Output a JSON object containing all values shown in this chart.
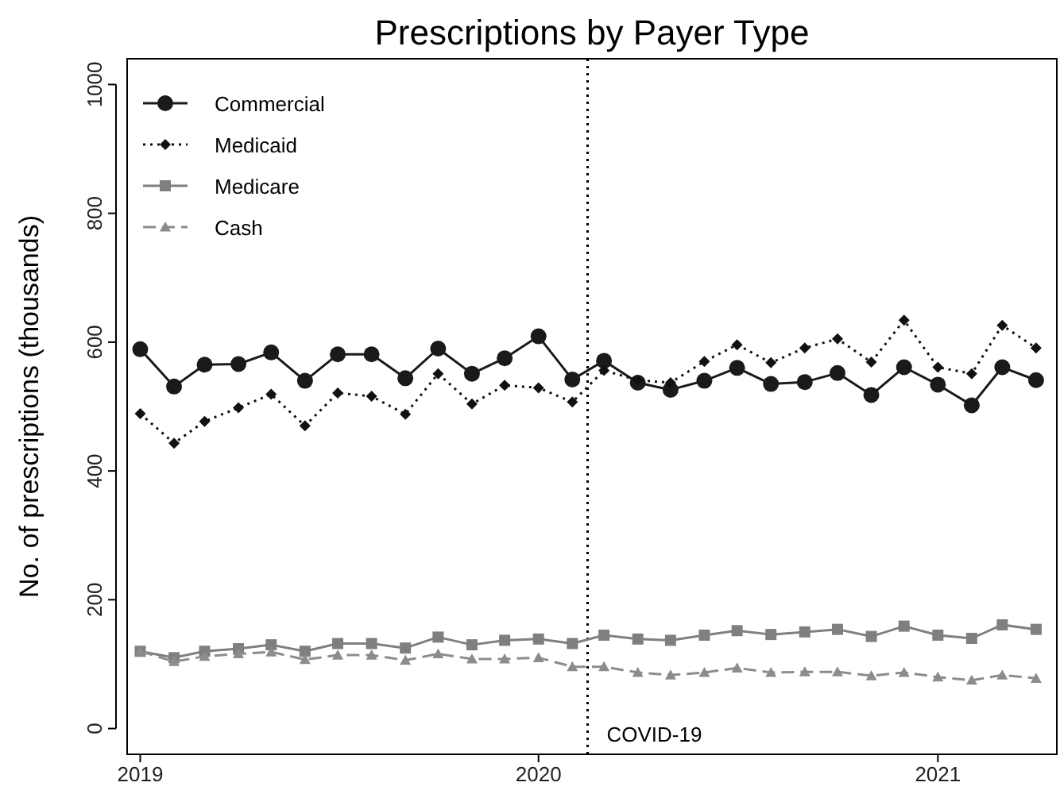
{
  "chart_data": {
    "type": "line",
    "title": "Prescriptions by Payer Type",
    "ylabel": "No. of prescriptions (thousands)",
    "x": [
      "2019-01",
      "2019-02",
      "2019-03",
      "2019-04",
      "2019-05",
      "2019-06",
      "2019-07",
      "2019-08",
      "2019-09",
      "2019-10",
      "2019-11",
      "2019-12",
      "2020-01",
      "2020-02",
      "2020-03",
      "2020-04",
      "2020-05",
      "2020-06",
      "2020-07",
      "2020-08",
      "2020-09",
      "2020-10",
      "2020-11",
      "2020-12",
      "2021-01",
      "2021-02",
      "2021-03",
      "2021-04"
    ],
    "series": [
      {
        "name": "Commercial",
        "color": "#1a1a1a",
        "marker": "circle",
        "line_style": "solid",
        "values": [
          589,
          531,
          565,
          566,
          584,
          540,
          581,
          581,
          544,
          590,
          551,
          575,
          609,
          542,
          571,
          537,
          526,
          540,
          560,
          535,
          538,
          552,
          518,
          561,
          534,
          502,
          561,
          541
        ]
      },
      {
        "name": "Medicaid",
        "color": "#111111",
        "marker": "diamond",
        "line_style": "dotted",
        "values": [
          489,
          443,
          477,
          498,
          519,
          470,
          521,
          516,
          488,
          551,
          504,
          533,
          529,
          507,
          556,
          541,
          537,
          570,
          596,
          568,
          591,
          605,
          569,
          634,
          561,
          551,
          626,
          591
        ]
      },
      {
        "name": "Medicare",
        "color": "#7f7f7f",
        "marker": "square",
        "line_style": "solid",
        "values": [
          120,
          110,
          120,
          124,
          130,
          120,
          132,
          132,
          125,
          142,
          130,
          137,
          139,
          132,
          145,
          139,
          137,
          145,
          152,
          146,
          150,
          154,
          143,
          159,
          145,
          140,
          161,
          154
        ]
      },
      {
        "name": "Cash",
        "color": "#8c8c8c",
        "marker": "triangle",
        "line_style": "dashed",
        "values": [
          120,
          104,
          112,
          116,
          119,
          107,
          114,
          114,
          106,
          116,
          108,
          108,
          110,
          96,
          96,
          87,
          83,
          87,
          94,
          87,
          88,
          88,
          82,
          87,
          80,
          75,
          83,
          78
        ]
      }
    ],
    "xlim": [
      "2018-12-20",
      "2021-04-20"
    ],
    "xticks": [
      {
        "value": "2019",
        "label": "2019"
      },
      {
        "value": "2020",
        "label": "2020"
      },
      {
        "value": "2021",
        "label": "2021"
      }
    ],
    "ylim": [
      -40,
      1040
    ],
    "yticks": [
      0,
      200,
      400,
      600,
      800,
      1000
    ],
    "ref_lines": [
      {
        "axis": "x",
        "value": "2020-02-15",
        "label": "COVID-19",
        "line_style": "dotted",
        "color": "#000000"
      }
    ],
    "grid": false,
    "legend": "top left"
  }
}
